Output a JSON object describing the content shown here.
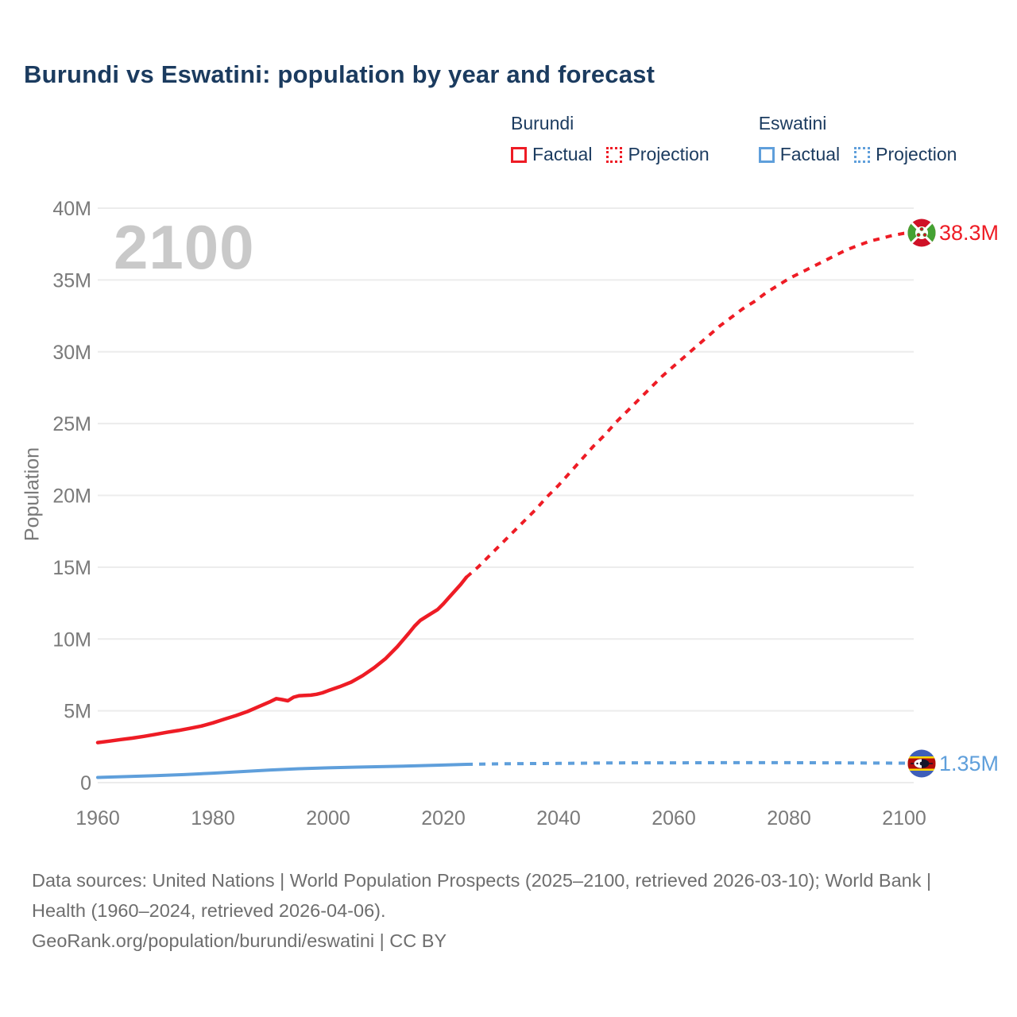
{
  "title": "Burundi vs Eswatini: population by year and forecast",
  "colors": {
    "burundi": "#ee1c25",
    "eswatini": "#5f9fdb",
    "title_text": "#1b3b5f",
    "axis_text": "#7a7a7a",
    "grid": "#ececec",
    "watermark": "#c9c9c9",
    "footer_text": "#6e6e6e"
  },
  "legend": {
    "groups": [
      {
        "name": "Burundi",
        "items": [
          {
            "label": "Factual",
            "style": "solid"
          },
          {
            "label": "Projection",
            "style": "dotted"
          }
        ]
      },
      {
        "name": "Eswatini",
        "items": [
          {
            "label": "Factual",
            "style": "solid"
          },
          {
            "label": "Projection",
            "style": "dotted"
          }
        ]
      }
    ]
  },
  "chart_data": {
    "type": "line",
    "title": "Burundi vs Eswatini: population by year and forecast",
    "watermark": "2100",
    "xlabel": "",
    "ylabel": "Population",
    "xlim": [
      1959,
      2103
    ],
    "ylim_millions": [
      0,
      40
    ],
    "grid": "horizontal",
    "legend_position": "top-right",
    "x_ticks": [
      1960,
      1980,
      2000,
      2020,
      2040,
      2060,
      2080,
      2100
    ],
    "y_ticks": [
      {
        "value": 0,
        "label": "0"
      },
      {
        "value": 5,
        "label": "5M"
      },
      {
        "value": 10,
        "label": "10M"
      },
      {
        "value": 15,
        "label": "15M"
      },
      {
        "value": 20,
        "label": "20M"
      },
      {
        "value": 25,
        "label": "25M"
      },
      {
        "value": 30,
        "label": "30M"
      },
      {
        "value": 35,
        "label": "35M"
      },
      {
        "value": 40,
        "label": "40M"
      }
    ],
    "unit": "millions of people",
    "series": [
      {
        "id": "burundi-factual",
        "country": "Burundi",
        "kind": "Factual",
        "color": "burundi",
        "dash": false,
        "width": 4.5,
        "points": [
          [
            1960,
            2.79
          ],
          [
            1962,
            2.89
          ],
          [
            1964,
            3.0
          ],
          [
            1966,
            3.1
          ],
          [
            1968,
            3.22
          ],
          [
            1970,
            3.36
          ],
          [
            1972,
            3.5
          ],
          [
            1974,
            3.63
          ],
          [
            1976,
            3.78
          ],
          [
            1978,
            3.94
          ],
          [
            1980,
            4.16
          ],
          [
            1982,
            4.42
          ],
          [
            1984,
            4.67
          ],
          [
            1986,
            4.95
          ],
          [
            1988,
            5.3
          ],
          [
            1990,
            5.65
          ],
          [
            1991,
            5.85
          ],
          [
            1992,
            5.78
          ],
          [
            1993,
            5.7
          ],
          [
            1994,
            5.95
          ],
          [
            1995,
            6.05
          ],
          [
            1996,
            6.07
          ],
          [
            1997,
            6.09
          ],
          [
            1998,
            6.15
          ],
          [
            1999,
            6.25
          ],
          [
            2000,
            6.4
          ],
          [
            2002,
            6.68
          ],
          [
            2004,
            7.0
          ],
          [
            2006,
            7.45
          ],
          [
            2008,
            8.0
          ],
          [
            2010,
            8.65
          ],
          [
            2012,
            9.46
          ],
          [
            2014,
            10.4
          ],
          [
            2015,
            10.9
          ],
          [
            2016,
            11.3
          ],
          [
            2017,
            11.55
          ],
          [
            2018,
            11.8
          ],
          [
            2019,
            12.05
          ],
          [
            2020,
            12.45
          ],
          [
            2021,
            12.9
          ],
          [
            2022,
            13.35
          ],
          [
            2023,
            13.8
          ],
          [
            2024,
            14.3
          ]
        ]
      },
      {
        "id": "burundi-projection",
        "country": "Burundi",
        "kind": "Projection",
        "color": "burundi",
        "dash": true,
        "width": 4,
        "points": [
          [
            2024,
            14.3
          ],
          [
            2026,
            15.0
          ],
          [
            2028,
            15.8
          ],
          [
            2030,
            16.6
          ],
          [
            2032,
            17.4
          ],
          [
            2034,
            18.2
          ],
          [
            2036,
            19.0
          ],
          [
            2038,
            19.9
          ],
          [
            2040,
            20.7
          ],
          [
            2042,
            21.6
          ],
          [
            2044,
            22.5
          ],
          [
            2046,
            23.4
          ],
          [
            2048,
            24.2
          ],
          [
            2050,
            25.1
          ],
          [
            2052,
            25.9
          ],
          [
            2054,
            26.7
          ],
          [
            2056,
            27.5
          ],
          [
            2058,
            28.3
          ],
          [
            2060,
            29.0
          ],
          [
            2062,
            29.7
          ],
          [
            2064,
            30.4
          ],
          [
            2066,
            31.1
          ],
          [
            2068,
            31.8
          ],
          [
            2070,
            32.4
          ],
          [
            2072,
            33.0
          ],
          [
            2074,
            33.5
          ],
          [
            2076,
            34.1
          ],
          [
            2078,
            34.6
          ],
          [
            2080,
            35.1
          ],
          [
            2082,
            35.5
          ],
          [
            2084,
            35.9
          ],
          [
            2086,
            36.3
          ],
          [
            2088,
            36.7
          ],
          [
            2090,
            37.1
          ],
          [
            2092,
            37.4
          ],
          [
            2094,
            37.7
          ],
          [
            2096,
            37.9
          ],
          [
            2098,
            38.1
          ],
          [
            2100,
            38.25
          ],
          [
            2102.5,
            38.3
          ]
        ]
      },
      {
        "id": "eswatini-factual",
        "country": "Eswatini",
        "kind": "Factual",
        "color": "eswatini",
        "dash": false,
        "width": 4,
        "points": [
          [
            1960,
            0.36
          ],
          [
            1965,
            0.42
          ],
          [
            1970,
            0.48
          ],
          [
            1975,
            0.56
          ],
          [
            1980,
            0.66
          ],
          [
            1985,
            0.77
          ],
          [
            1990,
            0.88
          ],
          [
            1995,
            0.97
          ],
          [
            2000,
            1.03
          ],
          [
            2005,
            1.08
          ],
          [
            2010,
            1.12
          ],
          [
            2015,
            1.17
          ],
          [
            2020,
            1.22
          ],
          [
            2024,
            1.27
          ]
        ]
      },
      {
        "id": "eswatini-projection",
        "country": "Eswatini",
        "kind": "Projection",
        "color": "eswatini",
        "dash": true,
        "width": 4,
        "points": [
          [
            2024,
            1.27
          ],
          [
            2030,
            1.31
          ],
          [
            2040,
            1.34
          ],
          [
            2050,
            1.37
          ],
          [
            2060,
            1.38
          ],
          [
            2070,
            1.39
          ],
          [
            2080,
            1.39
          ],
          [
            2090,
            1.37
          ],
          [
            2102.5,
            1.35
          ]
        ]
      }
    ],
    "end_labels": {
      "burundi": "38.3M",
      "eswatini": "1.35M"
    }
  },
  "flags": {
    "burundi": "burundi-flag",
    "eswatini": "eswatini-flag"
  },
  "footer": {
    "sources": "Data sources: United Nations | World Population Prospects (2025–2100, retrieved 2026-03-10); World Bank | Health (1960–2024, retrieved 2026-04-06).",
    "attribution": "GeoRank.org/population/burundi/eswatini | CC BY"
  }
}
